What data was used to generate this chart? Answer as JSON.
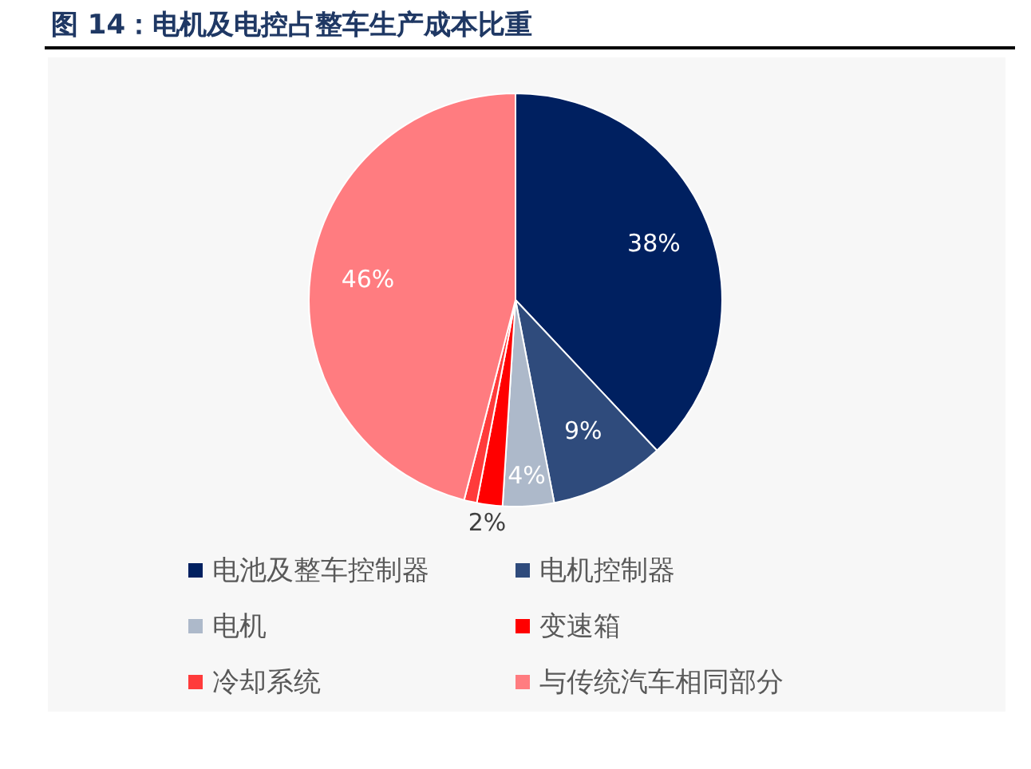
{
  "chart_data": {
    "type": "pie",
    "title": "图 14：电机及电控占整车生产成本比重",
    "categories": [
      "电池及整车控制器",
      "电机控制器",
      "电机",
      "变速箱",
      "冷却系统",
      "与传统汽车相同部分"
    ],
    "values": [
      38,
      9,
      4,
      2,
      1,
      46
    ],
    "colors": [
      "#002060",
      "#2f4b7c",
      "#adb9ca",
      "#ff0000",
      "#ff3b3b",
      "#ff7c80"
    ],
    "value_labels": [
      "38%",
      "9%",
      "4%",
      "2%",
      null,
      "46%"
    ],
    "legend": "bottom"
  }
}
